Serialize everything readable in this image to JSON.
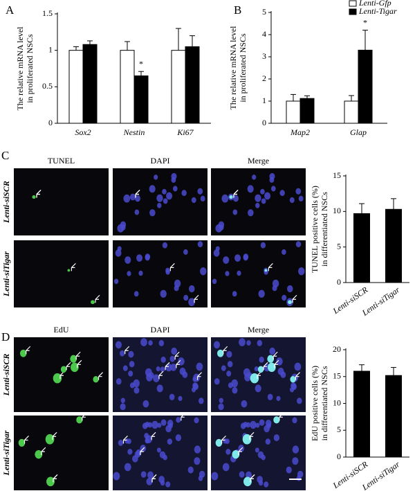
{
  "chart_data": [
    {
      "type": "bar",
      "panel": "A",
      "y_label": [
        "The relative mRNA level",
        "in proliferated NSCs"
      ],
      "categories": [
        "Sox2",
        "Nestin",
        "Ki67"
      ],
      "series": [
        {
          "name": "Lenti-Gfp",
          "color": "#ffffff",
          "values": [
            1.0,
            1.0,
            1.0
          ],
          "errors": [
            0.05,
            0.12,
            0.3
          ]
        },
        {
          "name": "Lenti-Tigar",
          "color": "#000000",
          "values": [
            1.08,
            0.65,
            1.05
          ],
          "errors": [
            0.05,
            0.06,
            0.15
          ]
        }
      ],
      "annotations": [
        {
          "text": "*",
          "x": "Nestin",
          "series": "Lenti-Tigar"
        }
      ],
      "ylim": [
        0,
        1.5
      ],
      "yticks": [
        0,
        0.5,
        1,
        1.5
      ],
      "legend": false
    },
    {
      "type": "bar",
      "panel": "B",
      "y_label": [
        "The relative mRNA level",
        "in proliferated NSCs"
      ],
      "categories": [
        "Map2",
        "Glap"
      ],
      "series": [
        {
          "name": "Lenti-Gfp",
          "color": "#ffffff",
          "values": [
            1.0,
            1.0
          ],
          "errors": [
            0.3,
            0.25
          ]
        },
        {
          "name": "Lenti-Tigar",
          "color": "#000000",
          "values": [
            1.12,
            3.3
          ],
          "errors": [
            0.12,
            0.9
          ]
        }
      ],
      "annotations": [
        {
          "text": "*",
          "x": "Glap",
          "series": "Lenti-Tigar"
        }
      ],
      "ylim": [
        0,
        5
      ],
      "yticks": [
        0,
        1,
        2,
        3,
        4,
        5
      ],
      "legend": "upper right"
    },
    {
      "type": "bar",
      "y_label": [
        "TUNEL positive cells (%)",
        "in differentiated NSCs"
      ],
      "categories": [
        "Lenti-siSCR",
        "Lenti-siTigar"
      ],
      "values": [
        9.7,
        10.3
      ],
      "errors": [
        1.4,
        1.5
      ],
      "color": "#000000",
      "ylim": [
        0,
        15
      ],
      "yticks": [
        0,
        5,
        10,
        15
      ]
    },
    {
      "type": "bar",
      "y_label": [
        "EdU positive cells (%)",
        "in differentiated NSCs"
      ],
      "categories": [
        "Lenti-siSCR",
        "Lenti-siTigar"
      ],
      "values": [
        16,
        15.2
      ],
      "errors": [
        1.2,
        1.5
      ],
      "color": "#000000",
      "ylim": [
        0,
        20
      ],
      "yticks": [
        0,
        5,
        10,
        15,
        20
      ]
    }
  ],
  "images": [
    {
      "panel": "C",
      "columns": [
        "TUNEL",
        "DAPI",
        "Merge"
      ],
      "rows": [
        "Lenti-siSCR",
        "Lenti-siTigar"
      ]
    },
    {
      "panel": "D",
      "columns": [
        "EdU",
        "DAPI",
        "Merge"
      ],
      "rows": [
        "Lenti-siSCR",
        "Lenti-siTigar"
      ]
    }
  ]
}
